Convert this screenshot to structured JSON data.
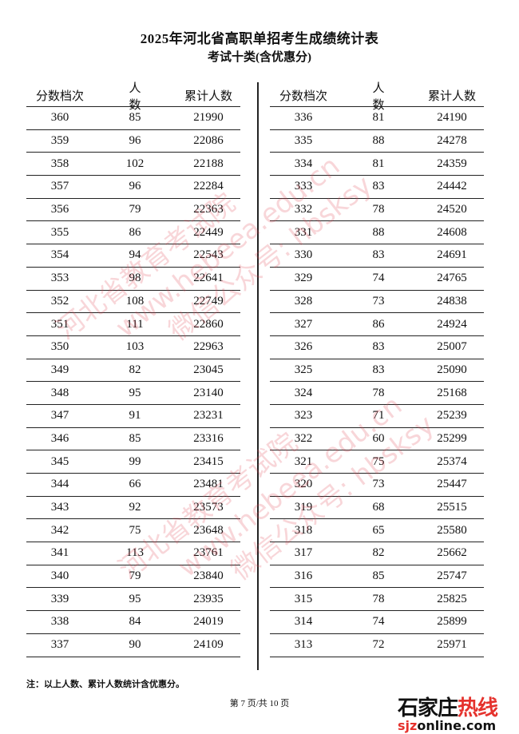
{
  "header": {
    "title": "2025年河北省高职单招考生成绩统计表",
    "subtitle": "考试十类(含优惠分)"
  },
  "columns": [
    "分数档次",
    "人　数",
    "累计人数"
  ],
  "left_rows": [
    [
      "360",
      "85",
      "21990"
    ],
    [
      "359",
      "96",
      "22086"
    ],
    [
      "358",
      "102",
      "22188"
    ],
    [
      "357",
      "96",
      "22284"
    ],
    [
      "356",
      "79",
      "22363"
    ],
    [
      "355",
      "86",
      "22449"
    ],
    [
      "354",
      "94",
      "22543"
    ],
    [
      "353",
      "98",
      "22641"
    ],
    [
      "352",
      "108",
      "22749"
    ],
    [
      "351",
      "111",
      "22860"
    ],
    [
      "350",
      "103",
      "22963"
    ],
    [
      "349",
      "82",
      "23045"
    ],
    [
      "348",
      "95",
      "23140"
    ],
    [
      "347",
      "91",
      "23231"
    ],
    [
      "346",
      "85",
      "23316"
    ],
    [
      "345",
      "99",
      "23415"
    ],
    [
      "344",
      "66",
      "23481"
    ],
    [
      "343",
      "92",
      "23573"
    ],
    [
      "342",
      "75",
      "23648"
    ],
    [
      "341",
      "113",
      "23761"
    ],
    [
      "340",
      "79",
      "23840"
    ],
    [
      "339",
      "95",
      "23935"
    ],
    [
      "338",
      "84",
      "24019"
    ],
    [
      "337",
      "90",
      "24109"
    ]
  ],
  "right_rows": [
    [
      "336",
      "81",
      "24190"
    ],
    [
      "335",
      "88",
      "24278"
    ],
    [
      "334",
      "81",
      "24359"
    ],
    [
      "333",
      "83",
      "24442"
    ],
    [
      "332",
      "78",
      "24520"
    ],
    [
      "331",
      "88",
      "24608"
    ],
    [
      "330",
      "83",
      "24691"
    ],
    [
      "329",
      "74",
      "24765"
    ],
    [
      "328",
      "73",
      "24838"
    ],
    [
      "327",
      "86",
      "24924"
    ],
    [
      "326",
      "83",
      "25007"
    ],
    [
      "325",
      "83",
      "25090"
    ],
    [
      "324",
      "78",
      "25168"
    ],
    [
      "323",
      "71",
      "25239"
    ],
    [
      "322",
      "60",
      "25299"
    ],
    [
      "321",
      "75",
      "25374"
    ],
    [
      "320",
      "73",
      "25447"
    ],
    [
      "319",
      "68",
      "25515"
    ],
    [
      "318",
      "65",
      "25580"
    ],
    [
      "317",
      "82",
      "25662"
    ],
    [
      "316",
      "85",
      "25747"
    ],
    [
      "315",
      "78",
      "25825"
    ],
    [
      "314",
      "74",
      "25899"
    ],
    [
      "313",
      "72",
      "25971"
    ]
  ],
  "footer": {
    "note": "注：以上人数、累计人数统计含优惠分。",
    "page": "第 7 页/共 10 页"
  },
  "watermark": {
    "line1": "河北省教育考试院",
    "line2": "www.hebeea.edu.cn",
    "line3": "微信公众号: hbsksy",
    "color": "#e14650"
  },
  "logo": {
    "cn_black": "石家庄",
    "cn_red": "热线",
    "en_red": "sjz",
    "en_black": "online.com"
  }
}
